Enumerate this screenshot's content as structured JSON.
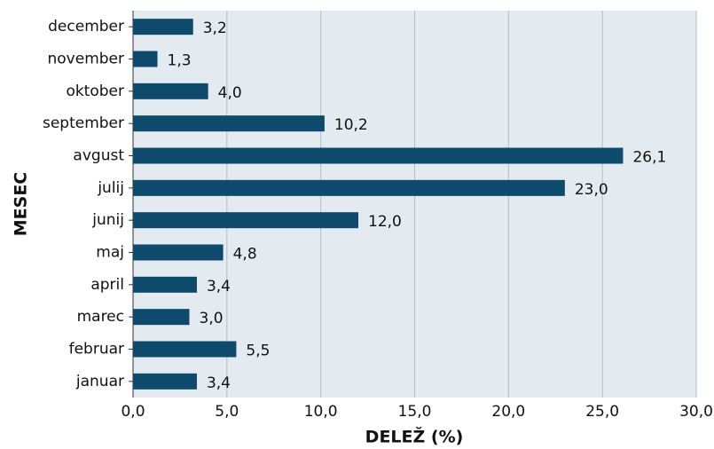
{
  "chart_data": {
    "type": "bar",
    "orientation": "horizontal",
    "xlabel": "DELEŽ (%)",
    "ylabel": "MESEC",
    "categories": [
      "januar",
      "februar",
      "marec",
      "april",
      "maj",
      "junij",
      "julij",
      "avgust",
      "september",
      "oktober",
      "november",
      "december"
    ],
    "values": [
      3.4,
      5.5,
      3.0,
      3.4,
      4.8,
      12.0,
      23.0,
      26.1,
      10.2,
      4.0,
      1.3,
      3.2
    ],
    "value_labels": [
      "3,4",
      "5,5",
      "3,0",
      "3,4",
      "4,8",
      "12,0",
      "23,0",
      "26,1",
      "10,2",
      "4,0",
      "1,3",
      "3,2"
    ],
    "color": "#0d4a6b",
    "xlim": [
      0,
      30
    ],
    "xticks": [
      {
        "value": 0,
        "label": "0,0"
      },
      {
        "value": 5,
        "label": "5,0"
      },
      {
        "value": 10,
        "label": "10,0"
      },
      {
        "value": 15,
        "label": "15,0"
      },
      {
        "value": 20,
        "label": "20,0"
      },
      {
        "value": 25,
        "label": "25,0"
      },
      {
        "value": 30,
        "label": "30,0"
      }
    ],
    "grid": true
  }
}
